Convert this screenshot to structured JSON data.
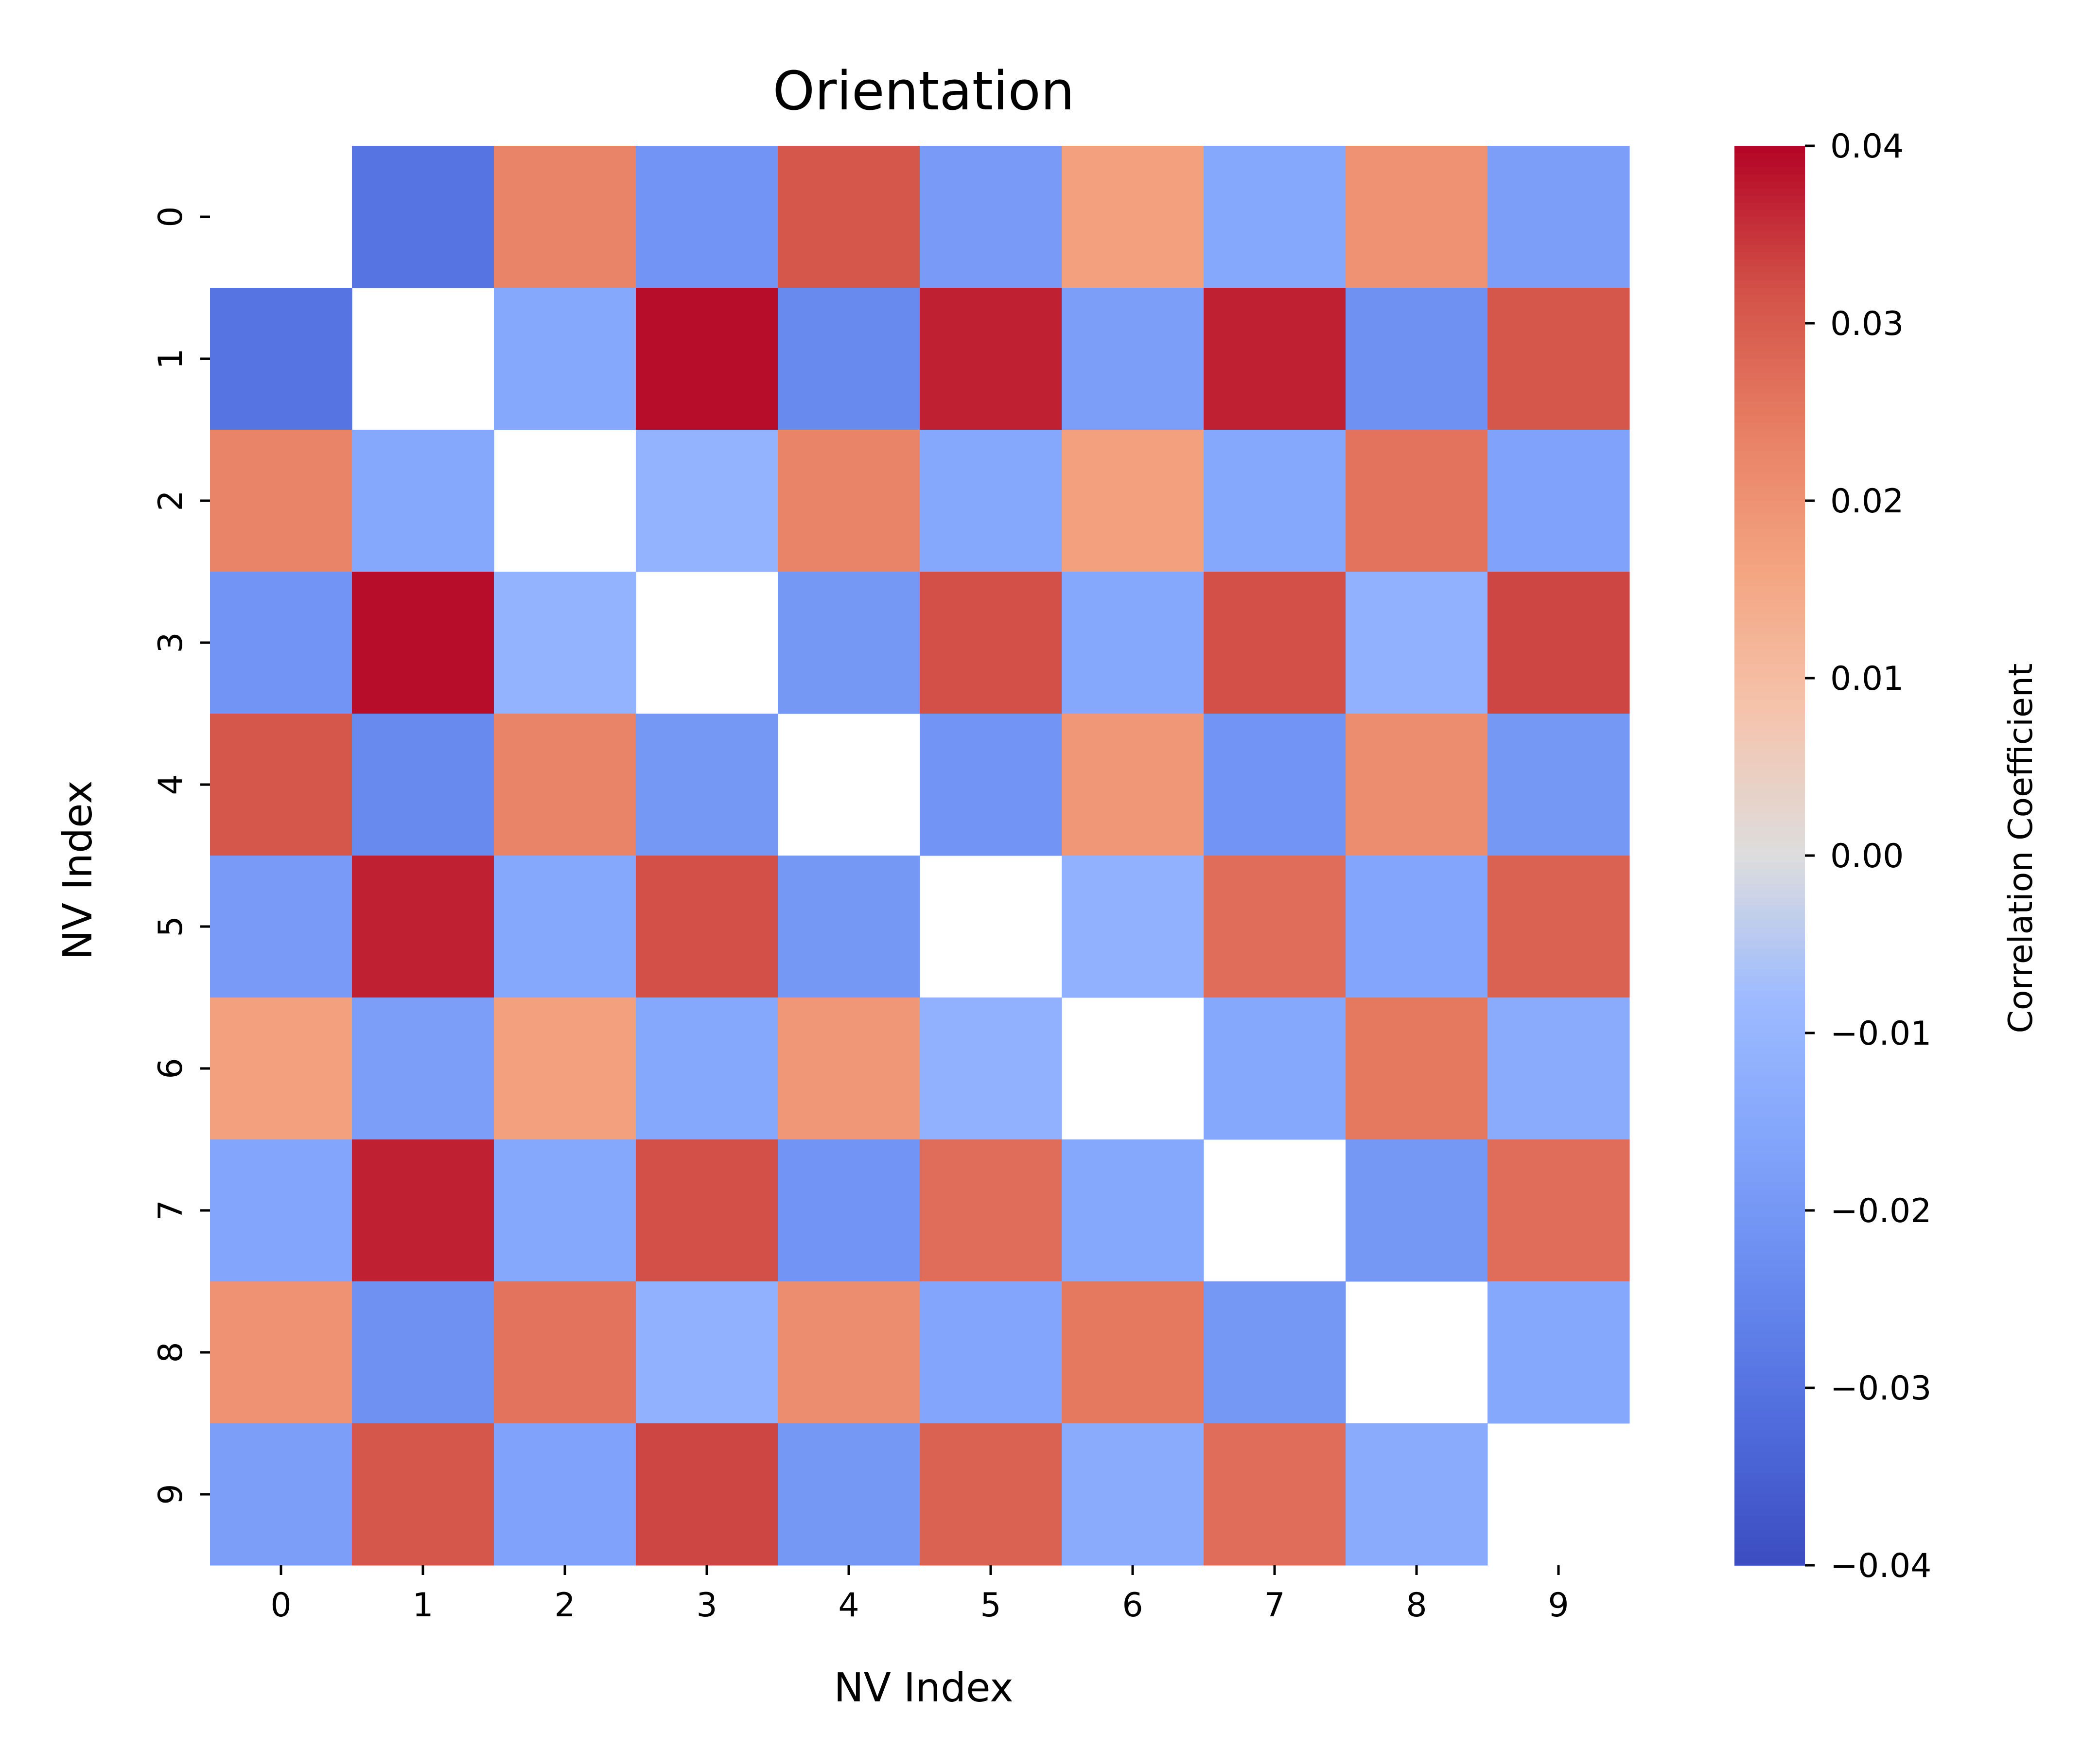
{
  "chart_data": {
    "type": "heatmap",
    "title": "Orientation",
    "xlabel": "NV Index",
    "ylabel": "NV Index",
    "x_categories": [
      "0",
      "1",
      "2",
      "3",
      "4",
      "5",
      "6",
      "7",
      "8",
      "9"
    ],
    "y_categories": [
      "0",
      "1",
      "2",
      "3",
      "4",
      "5",
      "6",
      "7",
      "8",
      "9"
    ],
    "matrix": [
      [
        null,
        -0.03,
        0.023,
        -0.021,
        0.031,
        -0.019,
        0.017,
        -0.015,
        0.02,
        -0.018
      ],
      [
        -0.03,
        null,
        -0.015,
        0.039,
        -0.024,
        0.037,
        -0.018,
        0.037,
        -0.022,
        0.031
      ],
      [
        0.023,
        -0.015,
        null,
        -0.011,
        0.023,
        -0.015,
        0.017,
        -0.015,
        0.026,
        -0.017
      ],
      [
        -0.021,
        0.039,
        -0.011,
        null,
        -0.02,
        0.032,
        -0.015,
        0.032,
        -0.012,
        0.033
      ],
      [
        0.031,
        -0.024,
        0.023,
        -0.02,
        null,
        -0.021,
        0.019,
        -0.021,
        0.021,
        -0.02
      ],
      [
        -0.019,
        0.037,
        -0.015,
        0.032,
        -0.02,
        null,
        -0.012,
        0.027,
        -0.016,
        0.029
      ],
      [
        0.017,
        -0.018,
        0.017,
        -0.015,
        0.019,
        -0.012,
        null,
        -0.015,
        0.025,
        -0.014
      ],
      [
        -0.016,
        0.037,
        -0.015,
        0.032,
        -0.021,
        0.027,
        -0.015,
        null,
        -0.02,
        0.027
      ],
      [
        0.02,
        -0.022,
        0.026,
        -0.012,
        0.021,
        -0.016,
        0.025,
        -0.02,
        null,
        -0.015
      ],
      [
        -0.018,
        0.031,
        -0.017,
        0.033,
        -0.02,
        0.029,
        -0.014,
        0.027,
        -0.014,
        null
      ]
    ],
    "colormap": "coolwarm",
    "vmin": -0.04,
    "vmax": 0.04,
    "colorbar": {
      "label": "Correlation Coefficient",
      "ticks": [
        0.04,
        0.03,
        0.02,
        0.01,
        0.0,
        -0.01,
        -0.02,
        -0.03,
        -0.04
      ],
      "tick_labels": [
        "0.04",
        "0.03",
        "0.02",
        "0.01",
        "0.00",
        "−0.01",
        "−0.02",
        "−0.03",
        "−0.04"
      ]
    },
    "grid": false
  }
}
